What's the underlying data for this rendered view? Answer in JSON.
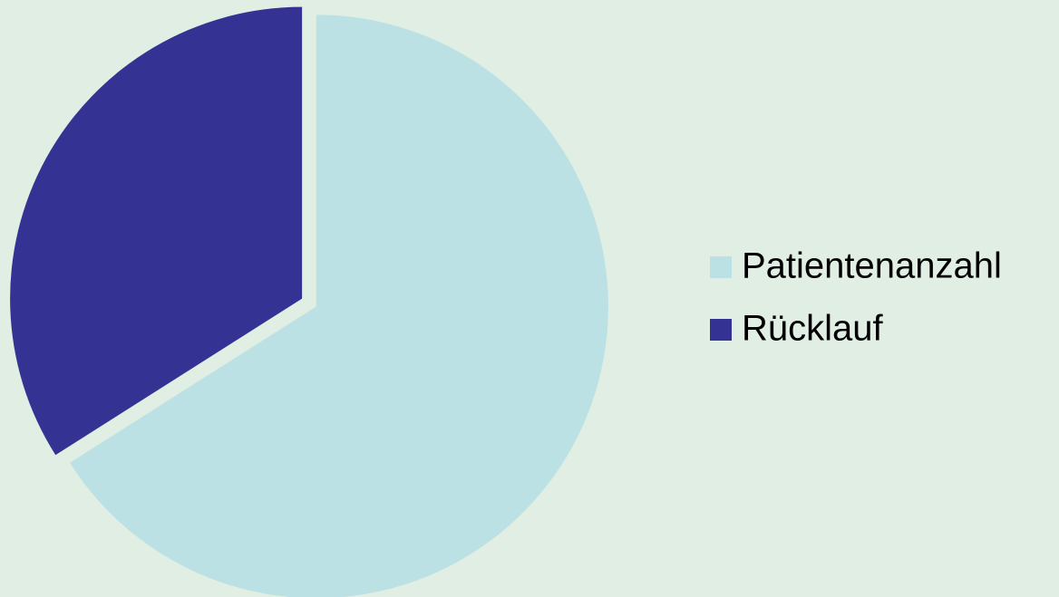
{
  "chart_data": {
    "type": "pie",
    "categories": [
      "Patientenanzahl",
      "Rücklauf"
    ],
    "values": [
      66,
      34
    ],
    "colors": [
      "#bce1e4",
      "#343394"
    ],
    "legend": "right"
  }
}
